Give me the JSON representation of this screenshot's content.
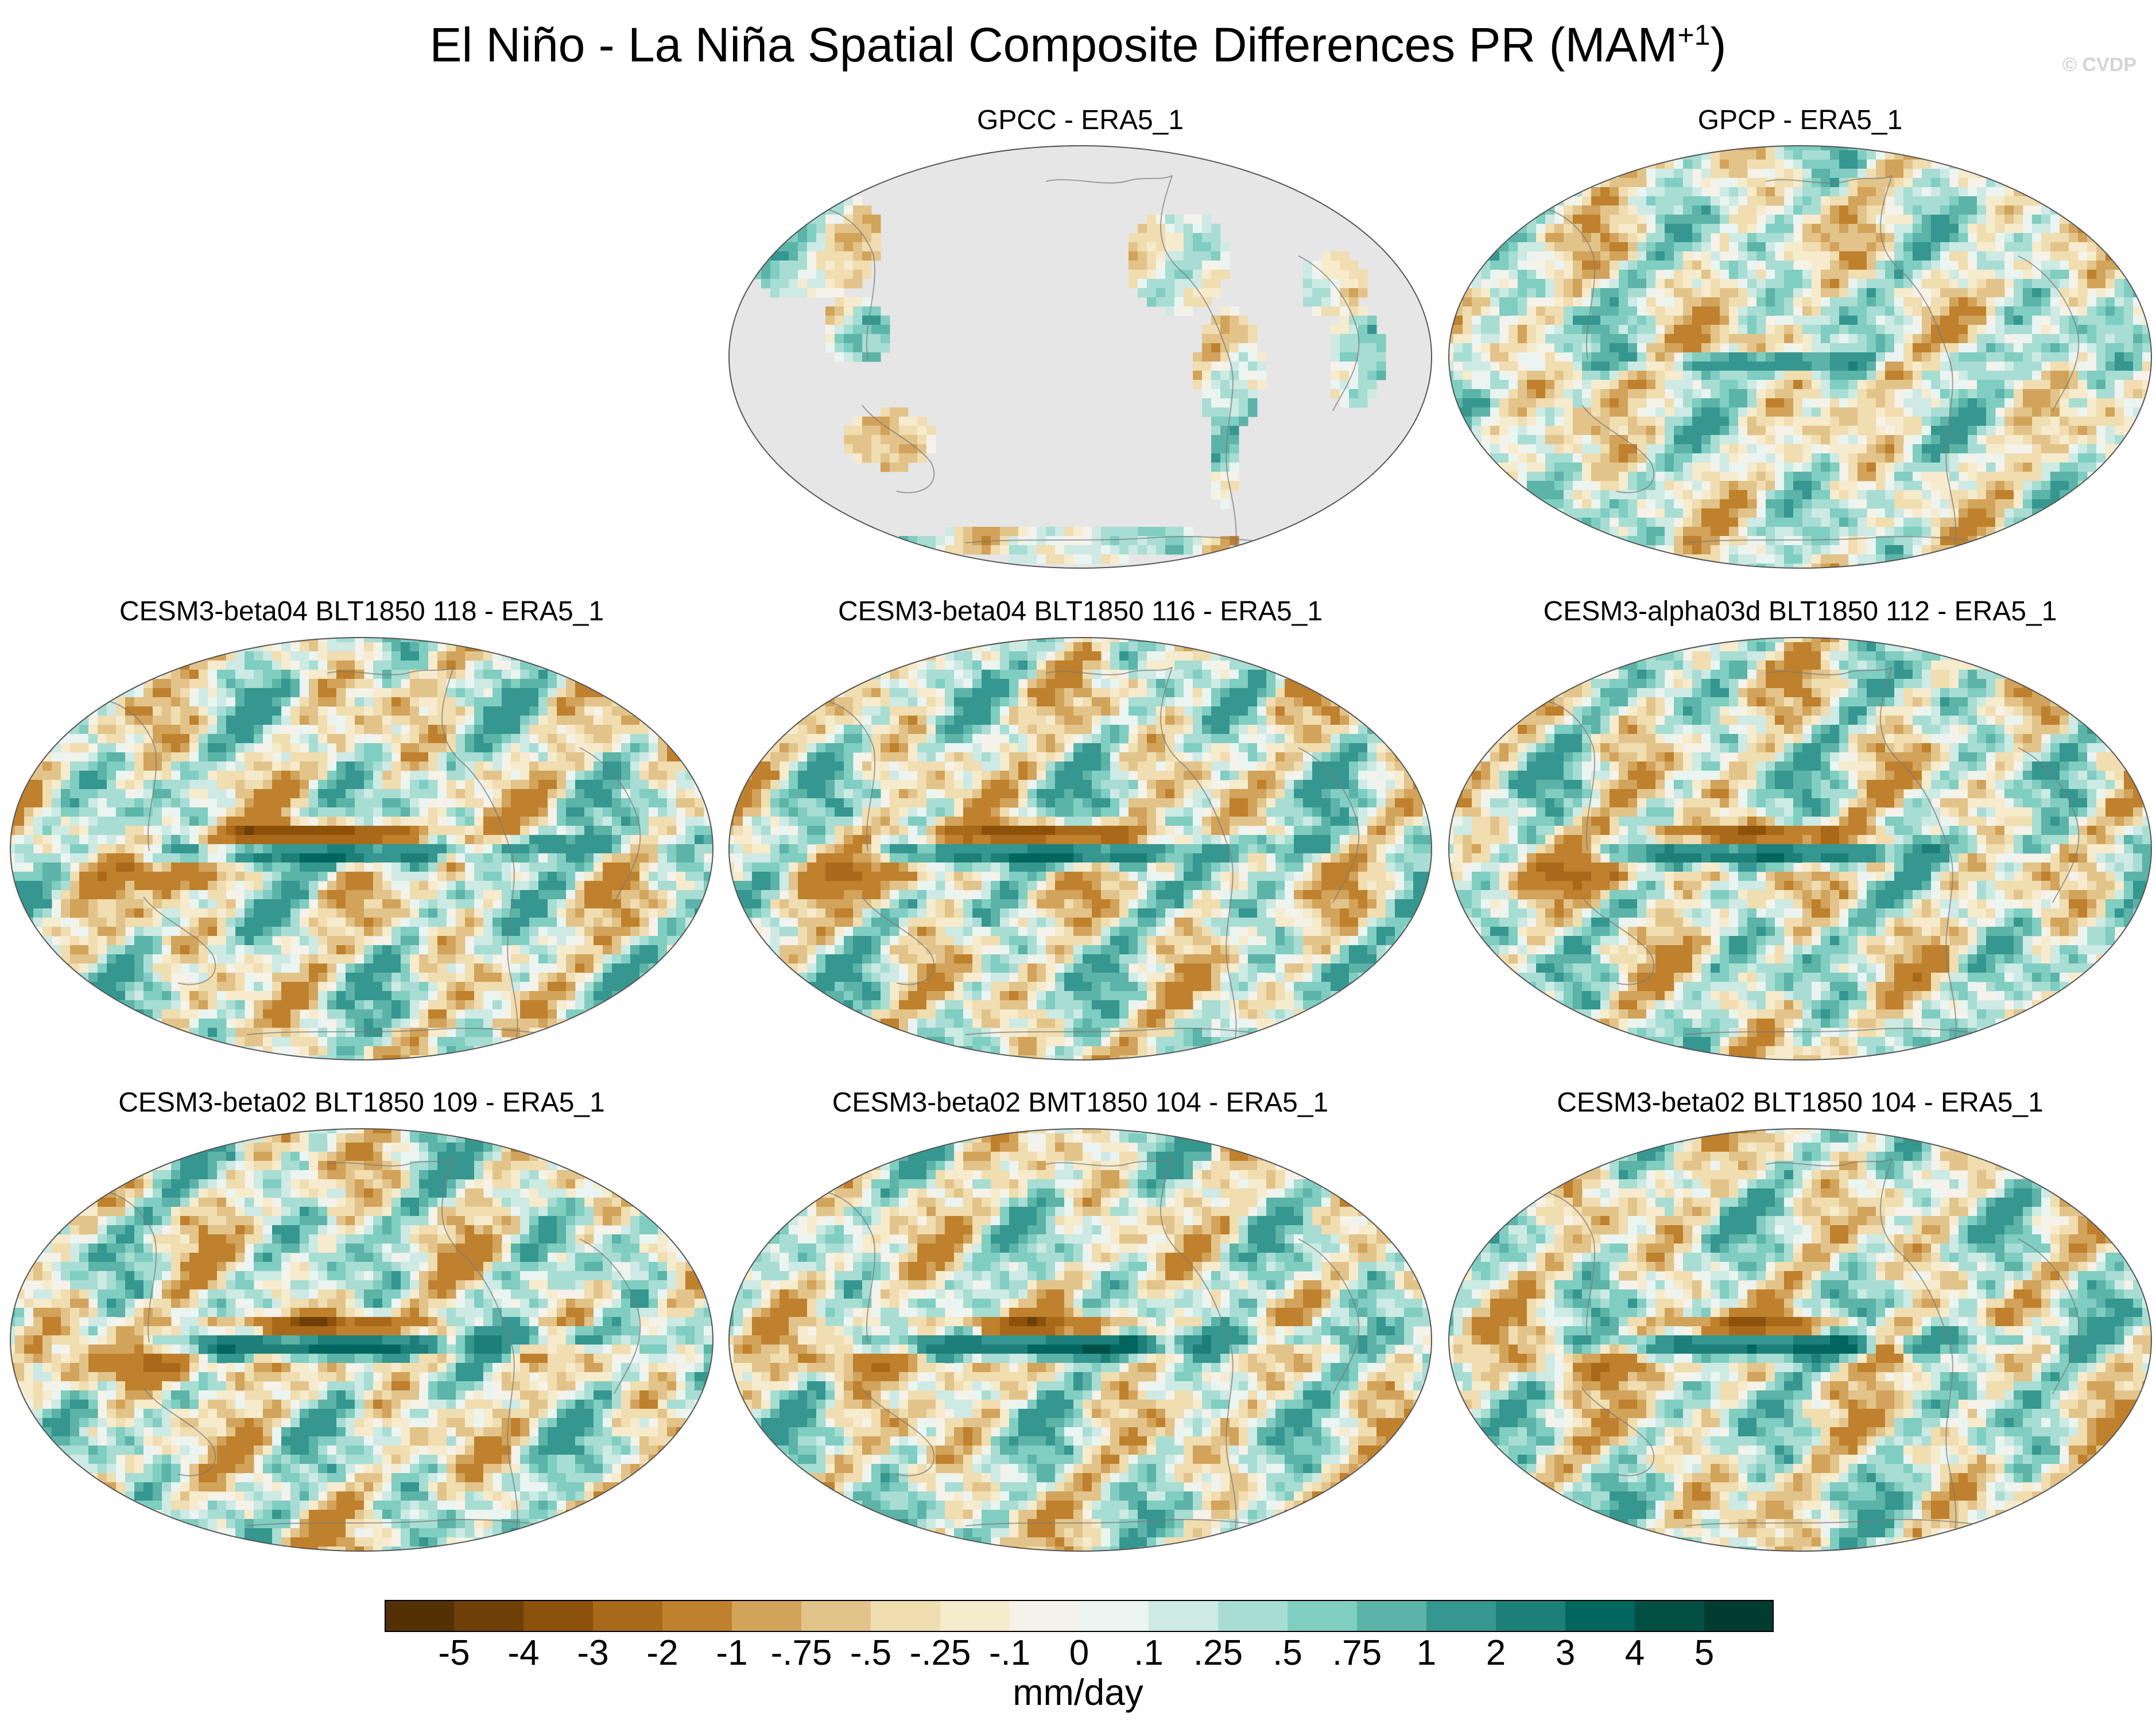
{
  "figure": {
    "title_main": "El Niño - La Niña Spatial Composite Differences PR (MAM",
    "title_sup": "+1",
    "title_end": ")",
    "credit": "© CVDP"
  },
  "panels": [
    {
      "id": "gpcc",
      "title": "GPCC - ERA5_1",
      "land_only": true
    },
    {
      "id": "gpcp",
      "title": "GPCP - ERA5_1",
      "land_only": false
    },
    {
      "id": "beta04-118",
      "title": "CESM3-beta04 BLT1850 118 - ERA5_1",
      "land_only": false
    },
    {
      "id": "beta04-116",
      "title": "CESM3-beta04 BLT1850 116 - ERA5_1",
      "land_only": false
    },
    {
      "id": "alpha03d-112",
      "title": "CESM3-alpha03d BLT1850 112 - ERA5_1",
      "land_only": false
    },
    {
      "id": "beta02-blt109",
      "title": "CESM3-beta02 BLT1850 109 - ERA5_1",
      "land_only": false
    },
    {
      "id": "beta02-bmt104",
      "title": "CESM3-beta02 BMT1850 104 - ERA5_1",
      "land_only": false
    },
    {
      "id": "beta02-blt104",
      "title": "CESM3-beta02 BLT1850 104 - ERA5_1",
      "land_only": false
    }
  ],
  "colorbar": {
    "units": "mm/day",
    "tick_labels": [
      "-5",
      "-4",
      "-3",
      "-2",
      "-1",
      "-.75",
      "-.5",
      "-.25",
      "-.1",
      "0",
      ".1",
      ".25",
      ".5",
      ".75",
      "1",
      "2",
      "3",
      "4",
      "5"
    ],
    "colors": [
      "#543005",
      "#6f3f08",
      "#8c510a",
      "#a8691a",
      "#bf812d",
      "#d2a35a",
      "#e2c48a",
      "#f0ddb0",
      "#f6ebcc",
      "#f5f2ea",
      "#eaf4f1",
      "#cdeae4",
      "#a8ddd3",
      "#80cdc1",
      "#5cb3a7",
      "#35978f",
      "#1d8078",
      "#01665e",
      "#014f45",
      "#003c30"
    ],
    "missing_color": "#e6e6e6"
  }
}
